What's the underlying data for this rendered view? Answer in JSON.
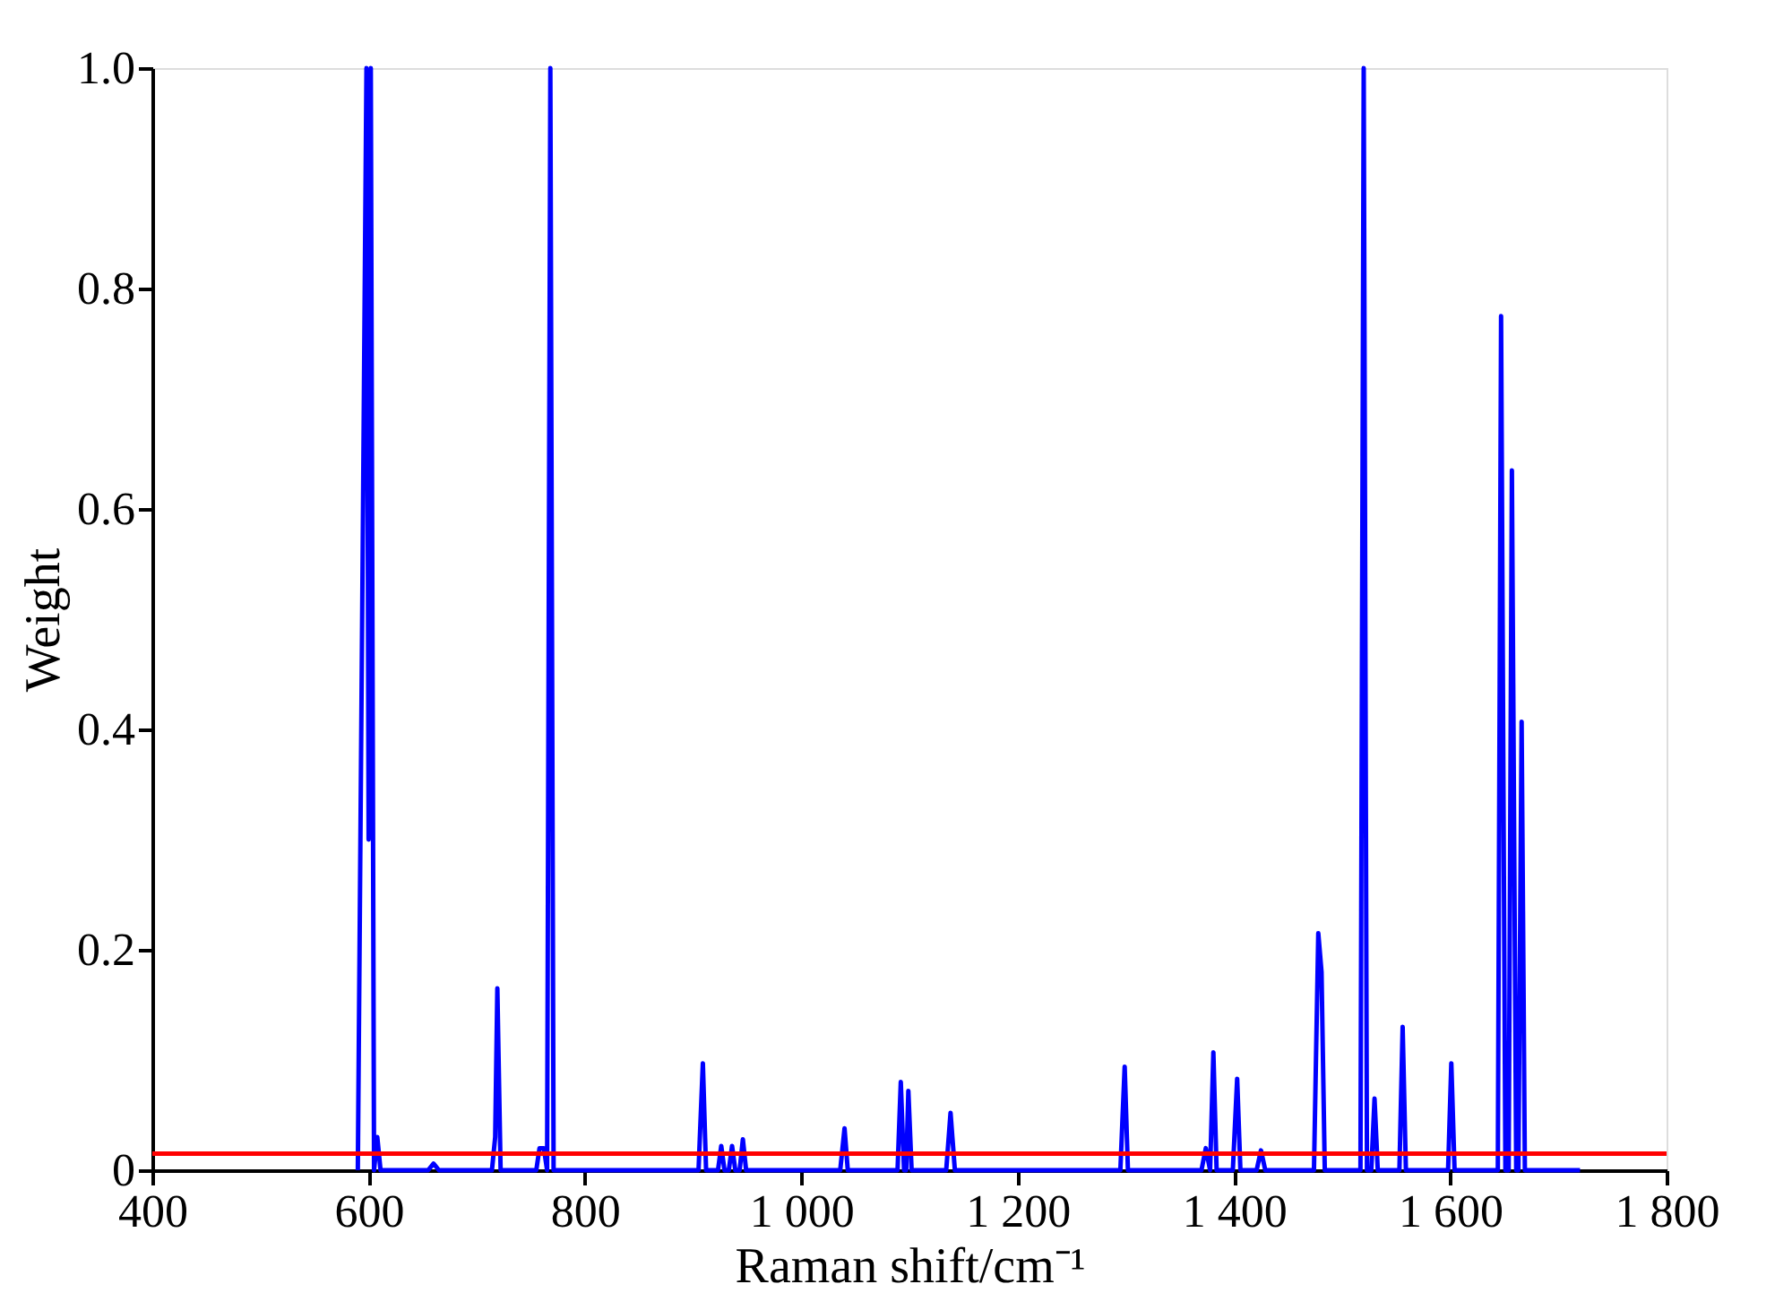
{
  "chart_data": {
    "type": "line",
    "xlabel": "Raman shift/cm⁻¹",
    "ylabel": "Weight",
    "x": [
      590,
      598,
      600,
      602,
      605,
      608,
      611,
      655,
      660,
      665,
      714,
      717,
      719,
      722,
      755,
      758,
      762,
      765,
      768,
      771,
      905,
      909,
      912,
      923,
      926,
      929,
      933,
      936,
      939,
      943,
      946,
      949,
      1036,
      1040,
      1043,
      1089,
      1092,
      1095,
      1097,
      1099,
      1102,
      1134,
      1138,
      1142,
      1295,
      1299,
      1302,
      1370,
      1374,
      1378,
      1381,
      1384,
      1399,
      1403,
      1406,
      1421,
      1425,
      1429,
      1474,
      1478,
      1481,
      1484,
      1517,
      1520,
      1523,
      1527,
      1530,
      1533,
      1553,
      1556,
      1559,
      1598,
      1601,
      1604,
      1644,
      1647,
      1651,
      1654,
      1657,
      1661,
      1663,
      1666,
      1669,
      1720
    ],
    "series": [
      {
        "color": "#0000ff",
        "values": [
          0,
          1.0,
          0.3,
          1.0,
          0,
          0.03,
          0,
          0,
          0.006,
          0,
          0,
          0.03,
          0.165,
          0,
          0,
          0.02,
          0.02,
          0,
          1.0,
          0,
          0,
          0.097,
          0,
          0,
          0.022,
          0,
          0,
          0.022,
          0,
          0,
          0.028,
          0,
          0,
          0.038,
          0,
          0,
          0.08,
          0,
          0,
          0.072,
          0,
          0,
          0.052,
          0,
          0,
          0.094,
          0,
          0,
          0.02,
          0,
          0.107,
          0,
          0,
          0.083,
          0,
          0,
          0.018,
          0,
          0,
          0.215,
          0.18,
          0,
          0,
          1.0,
          0,
          0,
          0.065,
          0,
          0,
          0.13,
          0,
          0,
          0.097,
          0,
          0,
          0.775,
          0,
          0,
          0.635,
          0,
          0,
          0.407,
          0,
          0
        ]
      }
    ],
    "xlim": [
      400,
      1800
    ],
    "xticks": [
      400,
      600,
      800,
      {
        "value": 1000,
        "label": "1 000"
      },
      {
        "value": 1200,
        "label": "1 200"
      },
      {
        "value": 1400,
        "label": "1 400"
      },
      {
        "value": 1600,
        "label": "1 600"
      },
      {
        "value": 1800,
        "label": "1 800"
      }
    ],
    "ylim": [
      0,
      1.0
    ],
    "yticks": [
      {
        "value": 0,
        "label": "0"
      },
      0.2,
      0.4,
      0.6,
      0.8,
      {
        "value": 1.0,
        "label": "1.0"
      }
    ],
    "ref_lines": [
      {
        "axis": "y",
        "value": 0.015,
        "color": "#ff0000"
      }
    ],
    "grid": false
  }
}
